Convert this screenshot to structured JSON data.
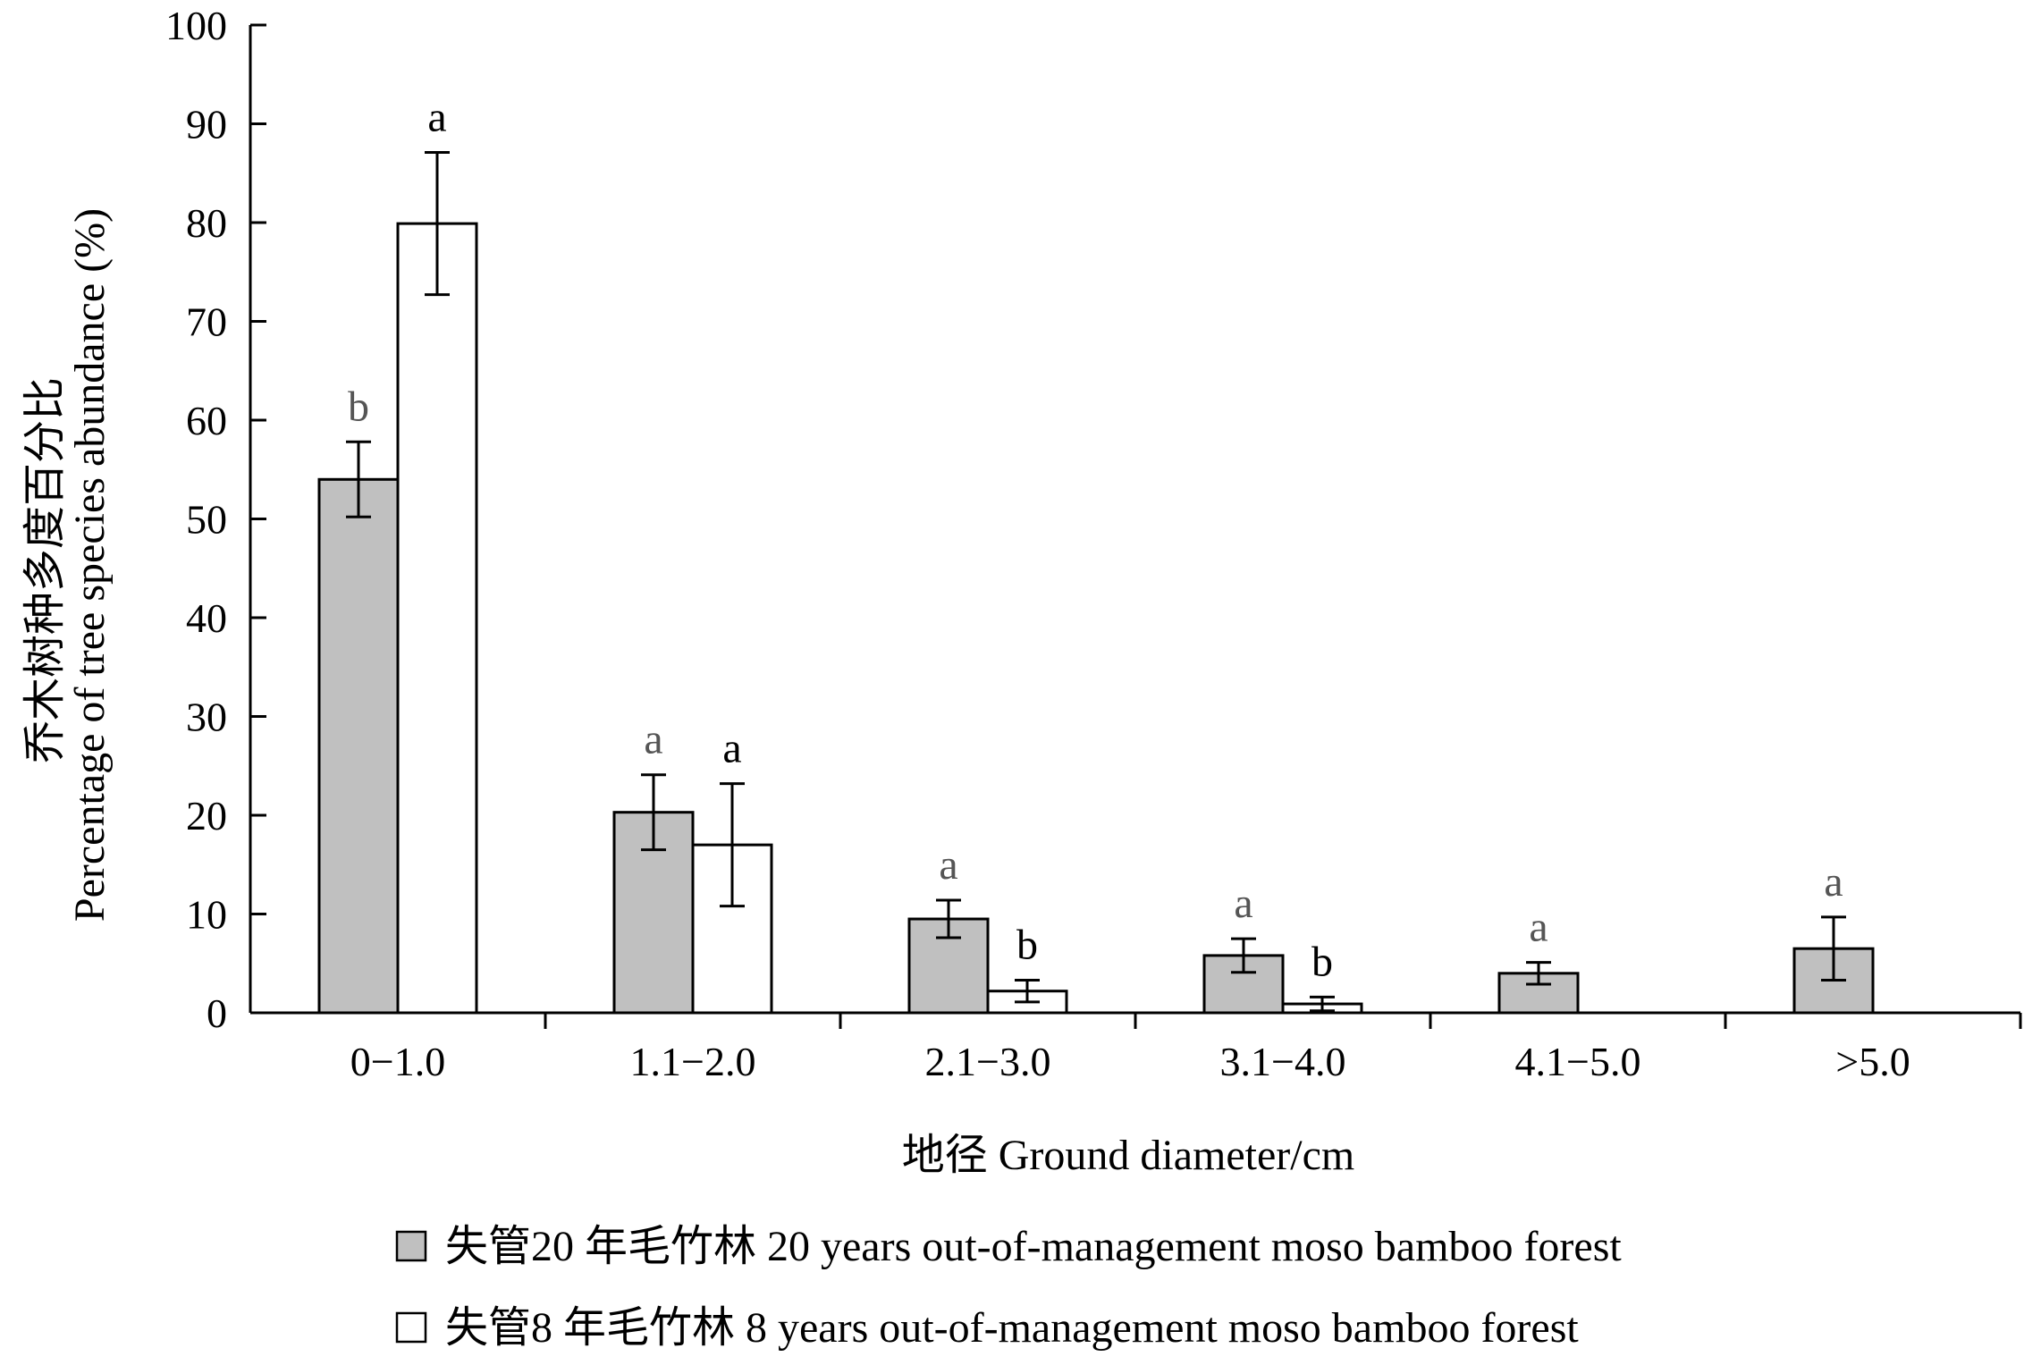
{
  "chart_data": {
    "type": "bar",
    "title": "",
    "categories": [
      "0−1.0",
      "1.1−2.0",
      "2.1−3.0",
      "3.1−4.0",
      "4.1−5.0",
      ">5.0"
    ],
    "series": [
      {
        "name": "失管20 年毛竹林  20 years out-of-management moso bamboo forest",
        "color": "#c0c0c0",
        "values": [
          54,
          20.3,
          9.5,
          5.8,
          4,
          6.5
        ],
        "error": [
          3.8,
          3.8,
          1.9,
          1.7,
          1.1,
          3.2
        ],
        "sig": [
          "b",
          "a",
          "a",
          "a",
          "a",
          "a"
        ]
      },
      {
        "name": "失管8 年毛竹林  8 years out-of-management moso bamboo forest",
        "color": "#ffffff",
        "values": [
          79.9,
          17,
          2.2,
          0.9,
          null,
          null
        ],
        "error": [
          7.2,
          6.2,
          1.1,
          0.7,
          null,
          null
        ],
        "sig": [
          "a",
          "a",
          "b",
          "b",
          null,
          null
        ]
      }
    ],
    "xlabel": "地径  Ground diameter/cm",
    "ylabel_cn": "乔木树种多度百分比",
    "ylabel_en": "Percentage of tree species abundance (%)",
    "ylim": [
      0,
      100
    ],
    "yticks": [
      "0",
      "10",
      "20",
      "30",
      "40",
      "50",
      "60",
      "70",
      "80",
      "90",
      "100"
    ],
    "grid": false,
    "legend_position": "bottom"
  }
}
